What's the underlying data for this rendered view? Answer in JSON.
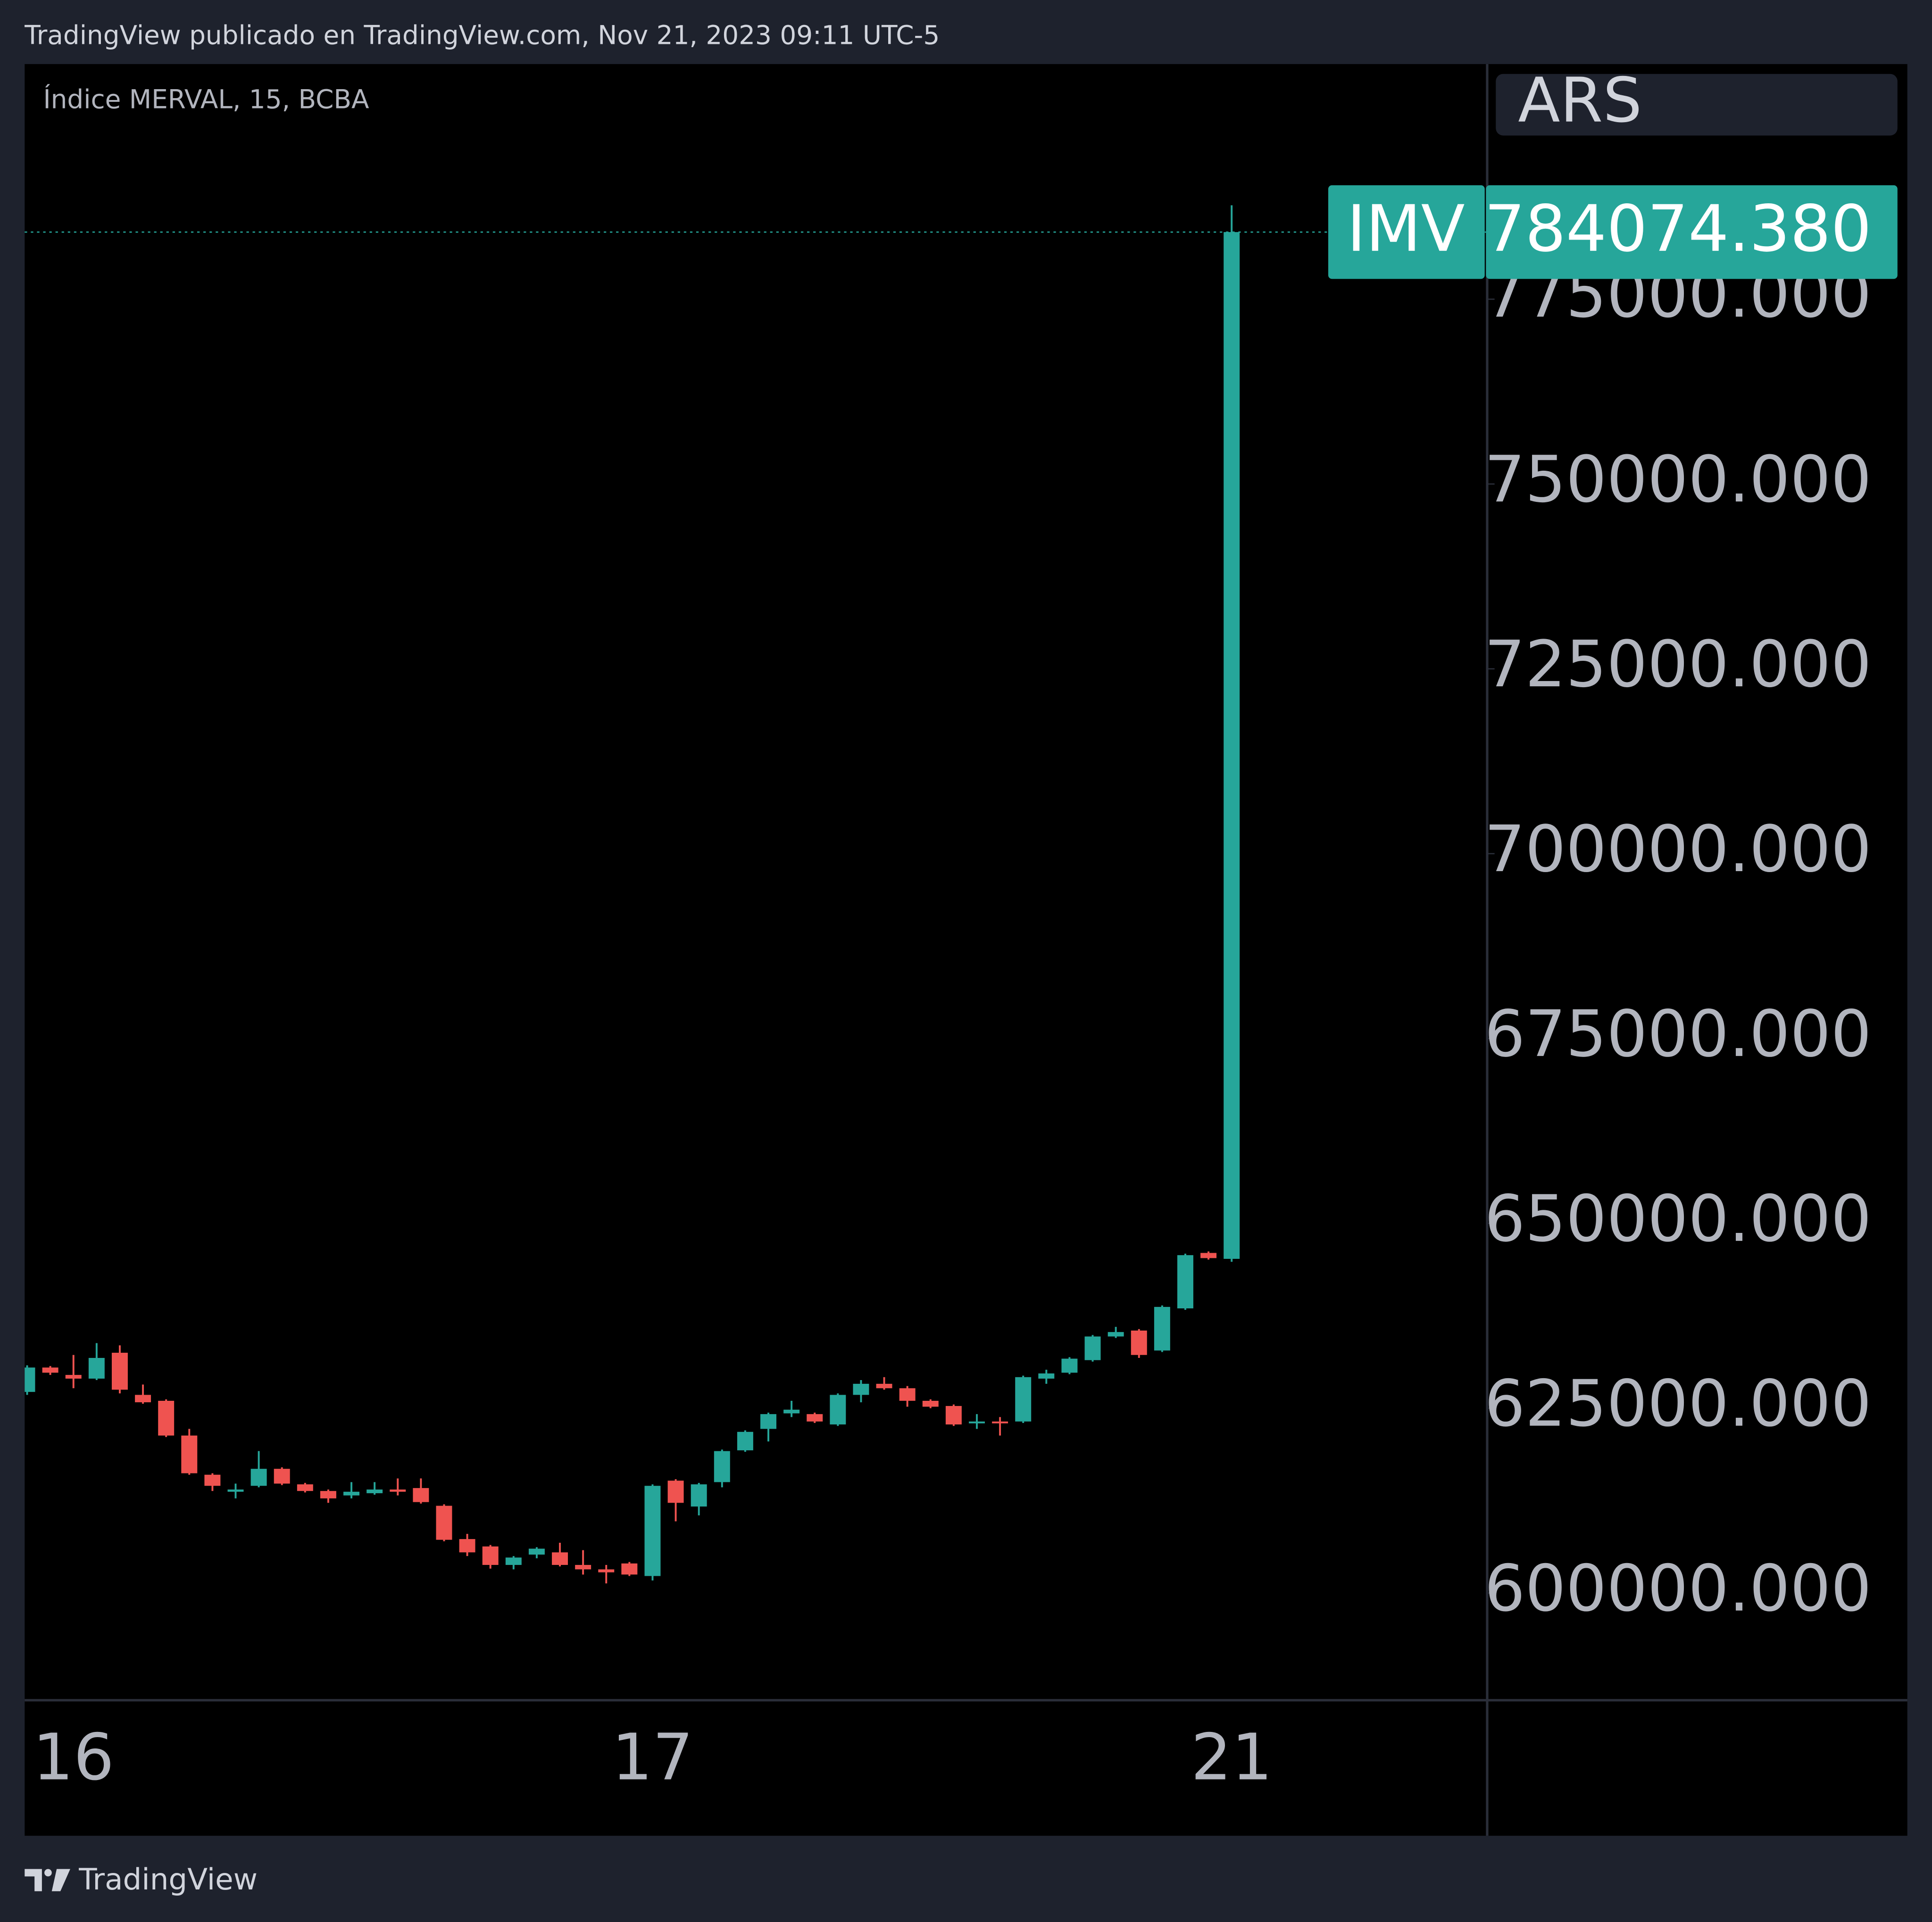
{
  "header": "TradingView publicado en TradingView.com, Nov 21, 2023 09:11 UTC-5",
  "footer": "TradingView",
  "chart_data": {
    "type": "candlestick",
    "title": "Índice MERVAL, 15, BCBA",
    "currency": "ARS",
    "categories": [
      null,
      null,
      "16",
      null,
      null,
      null,
      null,
      null,
      null,
      null,
      null,
      null,
      null,
      null,
      null,
      null,
      null,
      null,
      null,
      null,
      null,
      null,
      null,
      null,
      null,
      null,
      null,
      "17",
      null,
      null,
      null,
      null,
      null,
      null,
      null,
      null,
      null,
      null,
      null,
      null,
      null,
      null,
      null,
      null,
      null,
      null,
      null,
      null,
      null,
      null,
      null,
      null,
      "21"
    ],
    "series": [
      {
        "name": "IMV",
        "up_color": "#26a69a",
        "down_color": "#ef5350",
        "open": [
          627200,
          630500,
          629500,
          629000,
          632500,
          626800,
          626000,
          621300,
          616000,
          613700,
          614500,
          616800,
          614700,
          613800,
          613200,
          613500,
          614000,
          614200,
          611800,
          607300,
          606300,
          603800,
          605200,
          605500,
          603800,
          603200,
          604000,
          602300,
          615200,
          611700,
          615000,
          619300,
          622200,
          624300,
          624200,
          622800,
          626800,
          628300,
          627700,
          626000,
          625300,
          623000,
          623200,
          623200,
          629000,
          629800,
          631500,
          634700,
          635500,
          632800,
          638500,
          646000,
          645200
        ],
        "high": [
          630800,
          630700,
          632200,
          633800,
          633500,
          628200,
          626200,
          622200,
          616200,
          614800,
          619200,
          617000,
          614900,
          614000,
          615000,
          615000,
          615500,
          615500,
          612000,
          608000,
          606500,
          605000,
          606200,
          606800,
          605800,
          603800,
          604200,
          614700,
          615400,
          614900,
          619400,
          622000,
          624400,
          626000,
          624400,
          627000,
          628800,
          629200,
          628000,
          626200,
          625500,
          624200,
          623800,
          629400,
          630200,
          631900,
          634900,
          636000,
          635700,
          638900,
          645900,
          646200,
          787700
        ],
        "low": [
          626800,
          629500,
          627700,
          628800,
          627000,
          625600,
          621100,
          616000,
          613800,
          612800,
          614300,
          614600,
          613600,
          612200,
          612800,
          613300,
          613200,
          612100,
          607000,
          605000,
          603300,
          603200,
          604700,
          603600,
          602500,
          601300,
          602300,
          601700,
          609700,
          610500,
          614300,
          619100,
          620500,
          623800,
          623000,
          622600,
          625800,
          627500,
          625200,
          625000,
          622600,
          622200,
          621300,
          623000,
          628300,
          629600,
          631300,
          634500,
          631800,
          632600,
          638300,
          645100,
          644800
        ],
        "close": [
          630500,
          629800,
          629000,
          631800,
          627500,
          625800,
          621300,
          616200,
          614500,
          614000,
          616800,
          614800,
          613800,
          612800,
          613700,
          614000,
          613700,
          612300,
          607200,
          605500,
          603800,
          604800,
          606000,
          603800,
          603200,
          602800,
          602500,
          614500,
          612200,
          614700,
          619200,
          621800,
          624200,
          624800,
          623200,
          626800,
          628300,
          627700,
          626000,
          625200,
          622800,
          623200,
          623000,
          629200,
          629700,
          631700,
          634700,
          635300,
          632200,
          638700,
          645700,
          645300,
          784074.38
        ]
      }
    ],
    "last_price_label": "784074.380",
    "ylim": [
      585500,
      806800
    ],
    "yticks": [
      {
        "value": 600000,
        "label": "600000.000"
      },
      {
        "value": 625000,
        "label": "625000.000"
      },
      {
        "value": 650000,
        "label": "650000.000"
      },
      {
        "value": 675000,
        "label": "675000.000"
      },
      {
        "value": 700000,
        "label": "700000.000"
      },
      {
        "value": 725000,
        "label": "725000.000"
      },
      {
        "value": 750000,
        "label": "750000.000"
      },
      {
        "value": 775000,
        "label": "775000.000"
      }
    ],
    "grid": false
  }
}
